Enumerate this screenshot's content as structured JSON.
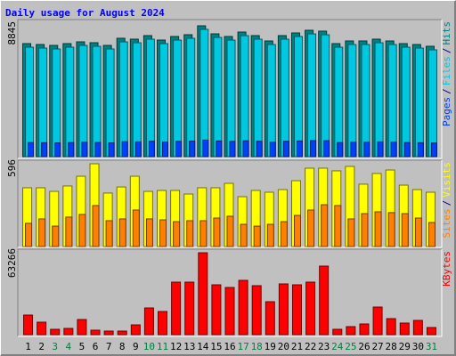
{
  "title": "Daily usage for August 2024",
  "chart_data": [
    {
      "type": "bar",
      "legend_separator": "/",
      "ylim": [
        0,
        8845
      ],
      "yticks": [
        8845
      ],
      "series": [
        {
          "name": "Hits",
          "color": "#008080",
          "values": [
            7642,
            7581,
            7521,
            7642,
            7762,
            7702,
            7521,
            8003,
            7942,
            8183,
            7882,
            8123,
            8243,
            8845,
            8303,
            8123,
            8424,
            8183,
            7822,
            8183,
            8364,
            8544,
            8484,
            7642,
            7822,
            7822,
            7942,
            7822,
            7642,
            7581,
            7461
          ]
        },
        {
          "name": "Files",
          "color": "#00c8e0",
          "values": [
            7400,
            7340,
            7280,
            7400,
            7520,
            7460,
            7280,
            7760,
            7700,
            7940,
            7640,
            7880,
            8000,
            8604,
            8060,
            7880,
            8180,
            7940,
            7580,
            7940,
            8120,
            8300,
            8240,
            7400,
            7580,
            7580,
            7700,
            7580,
            7400,
            7340,
            7220
          ]
        },
        {
          "name": "Pages",
          "color": "#0040ff",
          "values": [
            950,
            940,
            930,
            950,
            980,
            960,
            930,
            1010,
            1000,
            1040,
            990,
            1030,
            1050,
            1120,
            1060,
            1030,
            1070,
            1040,
            980,
            1040,
            1060,
            1090,
            1080,
            950,
            980,
            980,
            1000,
            980,
            950,
            940,
            920
          ]
        }
      ]
    },
    {
      "type": "bar",
      "legend_separator": "/",
      "ylim": [
        0,
        596
      ],
      "yticks": [
        596
      ],
      "series": [
        {
          "name": "Visits",
          "color": "#ffff00",
          "values": [
            423,
            423,
            397,
            436,
            506,
            596,
            385,
            429,
            506,
            397,
            404,
            404,
            378,
            423,
            423,
            455,
            359,
            404,
            391,
            410,
            474,
            564,
            564,
            545,
            577,
            449,
            526,
            551,
            442,
            410,
            391
          ]
        },
        {
          "name": "Sites",
          "color": "#ff8000",
          "values": [
            167,
            199,
            147,
            212,
            231,
            295,
            186,
            199,
            263,
            199,
            192,
            179,
            186,
            186,
            205,
            218,
            160,
            147,
            160,
            179,
            224,
            263,
            301,
            295,
            199,
            237,
            250,
            244,
            237,
            205,
            173
          ]
        }
      ]
    },
    {
      "type": "bar",
      "ylim": [
        0,
        63266
      ],
      "yticks": [
        63266
      ],
      "categories": [
        "1",
        "2",
        "3",
        "4",
        "5",
        "6",
        "7",
        "8",
        "9",
        "10",
        "11",
        "12",
        "13",
        "14",
        "15",
        "16",
        "17",
        "18",
        "19",
        "20",
        "21",
        "22",
        "23",
        "24",
        "25",
        "26",
        "27",
        "28",
        "29",
        "30",
        "31"
      ],
      "category_colors": [
        "#000000",
        "#000000",
        "#008040",
        "#008040",
        "#000000",
        "#000000",
        "#000000",
        "#000000",
        "#000000",
        "#008040",
        "#008040",
        "#000000",
        "#000000",
        "#000000",
        "#000000",
        "#000000",
        "#008040",
        "#008040",
        "#000000",
        "#000000",
        "#000000",
        "#000000",
        "#000000",
        "#008040",
        "#008040",
        "#000000",
        "#000000",
        "#000000",
        "#000000",
        "#000000",
        "#008040"
      ],
      "series": [
        {
          "name": "KBytes",
          "color": "#ff0000",
          "values": [
            15129,
            9628,
            4126,
            4814,
            11691,
            3438,
            2751,
            2751,
            7565,
            20631,
            17880,
            40574,
            40574,
            63266,
            38511,
            36448,
            41950,
            37824,
            25445,
            39199,
            38511,
            40574,
            52953,
            4126,
            6189,
            8252,
            21319,
            12379,
            8940,
            11003,
            5502
          ]
        }
      ]
    }
  ]
}
